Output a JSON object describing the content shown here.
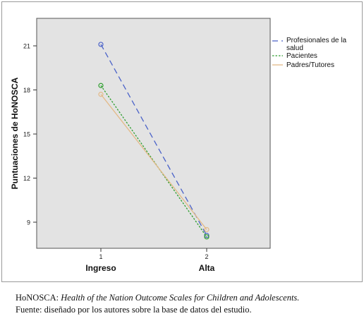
{
  "chart_data": {
    "type": "line",
    "x_ticks": [
      "1",
      "2"
    ],
    "categories": [
      "Ingreso",
      "Alta"
    ],
    "ylabel": "Puntuaciones de HoNOSCA",
    "xlabel": "",
    "ylim": [
      7.3,
      22.2
    ],
    "yticks": [
      9,
      12,
      15,
      18,
      21
    ],
    "grid": false,
    "legend_position": "right",
    "series": [
      {
        "name": "Profesionales de la salud",
        "values": [
          21.1,
          8.1
        ],
        "color": "#4a62c8",
        "dash": "dashed",
        "marker": "circle"
      },
      {
        "name": "Pacientes",
        "values": [
          18.3,
          8.0
        ],
        "color": "#2e9e2e",
        "dash": "dotted",
        "marker": "circle"
      },
      {
        "name": "Padres/Tutores",
        "values": [
          17.7,
          8.5
        ],
        "color": "#e3b987",
        "dash": "solid",
        "marker": "circle"
      }
    ],
    "colors": {
      "plot_background": "#e3e3e3"
    }
  },
  "caption": {
    "label": "HoNOSCA: ",
    "italic": "Health of the Nation Outcome Scales for Children and Adolescents.",
    "source": "Fuente: diseñado por los autores sobre la base de datos del estudio."
  }
}
